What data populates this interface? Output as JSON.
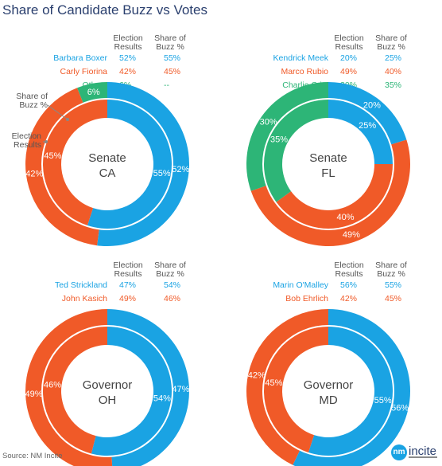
{
  "title": "Share of Candidate Buzz vs Votes",
  "source": "Source: NM Incite",
  "logo": {
    "mark": "nm",
    "text": "incite"
  },
  "colors": {
    "blue": "#1aa3e3",
    "orange": "#f05a28",
    "green": "#2db577",
    "title": "#2a3f6e"
  },
  "headers": {
    "results": "Election Results",
    "buzz": "Share of Buzz %"
  },
  "callouts": {
    "outer": "Election Results",
    "inner": "Share of Buzz %"
  },
  "chart_data": [
    {
      "type": "donut",
      "center": [
        "Senate",
        "CA"
      ],
      "series_outer": "Election Results",
      "series_inner": "Share of Buzz %",
      "candidates": [
        {
          "name": "Barbara Boxer",
          "color": "blue",
          "results": "52%",
          "buzz": "55%",
          "results_value": 52,
          "buzz_value": 55
        },
        {
          "name": "Carly Fiorina",
          "color": "orange",
          "results": "42%",
          "buzz": "45%",
          "results_value": 42,
          "buzz_value": 45
        },
        {
          "name": "Others",
          "color": "green",
          "results": "6%",
          "buzz": "--",
          "results_value": 6,
          "buzz_value": 0
        }
      ]
    },
    {
      "type": "donut",
      "center": [
        "Senate",
        "FL"
      ],
      "series_outer": "Election Results",
      "series_inner": "Share of Buzz %",
      "candidates": [
        {
          "name": "Kendrick Meek",
          "color": "blue",
          "results": "20%",
          "buzz": "25%",
          "results_value": 20,
          "buzz_value": 25
        },
        {
          "name": "Marco Rubio",
          "color": "orange",
          "results": "49%",
          "buzz": "40%",
          "results_value": 49,
          "buzz_value": 40
        },
        {
          "name": "Charlie Crist",
          "color": "green",
          "results": "30%",
          "buzz": "35%",
          "results_value": 30,
          "buzz_value": 35
        }
      ]
    },
    {
      "type": "donut",
      "center": [
        "Governor",
        "OH"
      ],
      "series_outer": "Election Results",
      "series_inner": "Share of Buzz %",
      "candidates": [
        {
          "name": "Ted Strickland",
          "color": "blue",
          "results": "47%",
          "buzz": "54%",
          "results_value": 47,
          "buzz_value": 54
        },
        {
          "name": "John Kasich",
          "color": "orange",
          "results": "49%",
          "buzz": "46%",
          "results_value": 49,
          "buzz_value": 46
        }
      ]
    },
    {
      "type": "donut",
      "center": [
        "Governor",
        "MD"
      ],
      "series_outer": "Election Results",
      "series_inner": "Share of Buzz %",
      "candidates": [
        {
          "name": "Marin O'Malley",
          "color": "blue",
          "results": "56%",
          "buzz": "55%",
          "results_value": 56,
          "buzz_value": 55
        },
        {
          "name": "Bob Ehrlich",
          "color": "orange",
          "results": "42%",
          "buzz": "45%",
          "results_value": 42,
          "buzz_value": 45
        }
      ]
    }
  ]
}
